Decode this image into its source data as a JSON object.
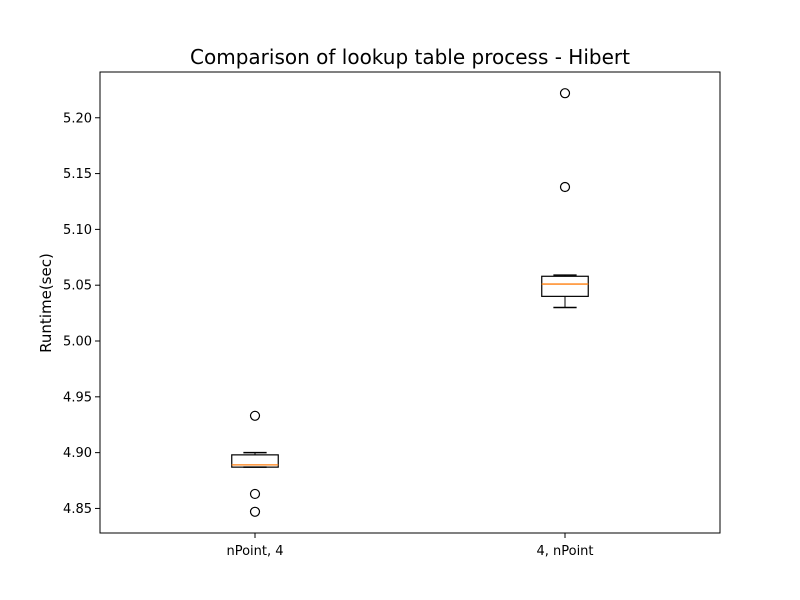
{
  "chart_data": {
    "type": "box",
    "title": "Comparison of lookup table process - Hibert",
    "ylabel": "Runtime(sec)",
    "xlabel": "",
    "categories": [
      "nPoint, 4",
      "4, nPoint"
    ],
    "ylim": [
      4.828,
      5.241
    ],
    "yticks": [
      4.85,
      4.9,
      4.95,
      5.0,
      5.05,
      5.1,
      5.15,
      5.2
    ],
    "ytick_labels": [
      "4.85",
      "4.90",
      "4.95",
      "5.00",
      "5.05",
      "5.10",
      "5.15",
      "5.20"
    ],
    "grid": false,
    "boxes": [
      {
        "whisker_low": 4.887,
        "q1": 4.887,
        "median": 4.889,
        "q3": 4.898,
        "whisker_high": 4.9,
        "outliers": [
          4.933,
          4.863,
          4.847
        ]
      },
      {
        "whisker_low": 5.03,
        "q1": 5.04,
        "median": 5.051,
        "q3": 5.058,
        "whisker_high": 5.059,
        "outliers": [
          5.222,
          5.138
        ]
      }
    ],
    "colors": {
      "box": "#000000",
      "median": "#ff7f0e",
      "flier": "#000000",
      "axes": "#000000"
    }
  }
}
